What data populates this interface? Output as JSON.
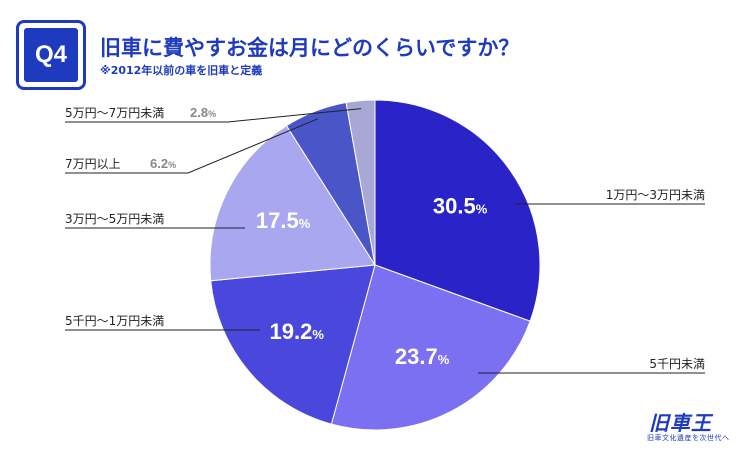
{
  "header": {
    "badge": "Q4",
    "title": "旧車に費やすお金は月にどのくらいですか？",
    "subtitle": "※2012年以前の車を旧車と定義"
  },
  "logo": {
    "main": "旧車王",
    "sub": "旧車文化遺産を次世代へ"
  },
  "chart_data": {
    "type": "pie",
    "title": "旧車に費やすお金は月にどのくらいですか？",
    "unit": "%",
    "slices": [
      {
        "label": "1万円～3万円未満",
        "value": 30.5,
        "color": "#2a24c8",
        "value_text": "30.5",
        "show_inside": true
      },
      {
        "label": "5千円未満",
        "value": 23.7,
        "color": "#7b6ff2",
        "value_text": "23.7",
        "show_inside": true
      },
      {
        "label": "5千円～1万円未満",
        "value": 19.2,
        "color": "#4a48dc",
        "value_text": "19.2",
        "show_inside": true
      },
      {
        "label": "3万円～5万円未満",
        "value": 17.5,
        "color": "#a9a7ef",
        "value_text": "17.5",
        "show_inside": true
      },
      {
        "label": "7万円以上",
        "value": 6.2,
        "color": "#4a56c8",
        "value_text": "6.2",
        "show_inside": false
      },
      {
        "label": "5万円～7万円未満",
        "value": 2.8,
        "color": "#a8a8d6",
        "value_text": "2.8",
        "show_inside": false
      }
    ]
  }
}
